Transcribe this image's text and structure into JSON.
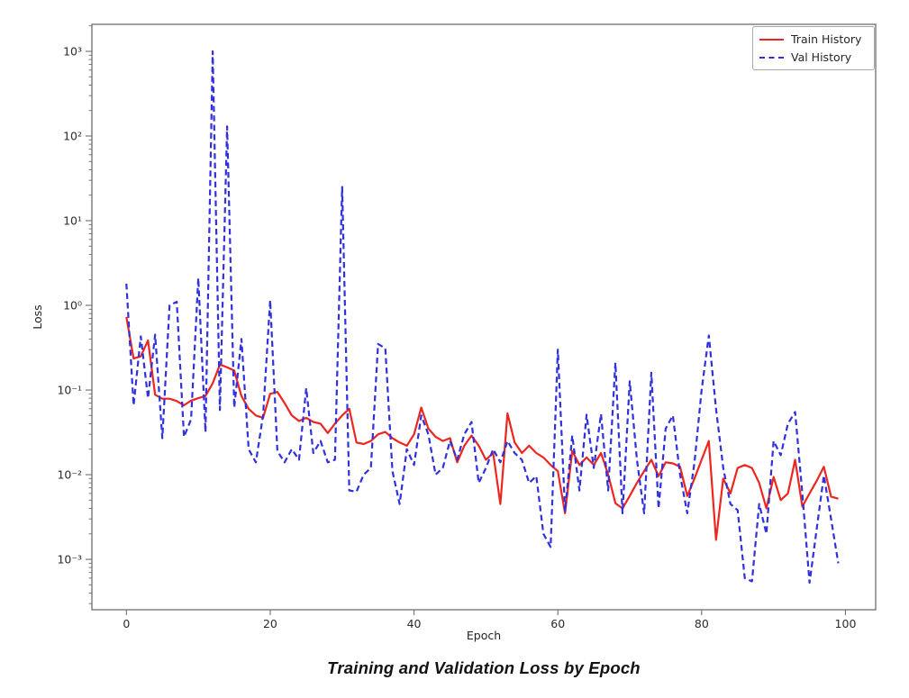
{
  "figure": {
    "caption": "Training and Validation Loss by Epoch"
  },
  "colors": {
    "train": "#ed261f",
    "val": "#3030dd",
    "frame": "#6e6e6e",
    "tick_label": "#2b2b2b"
  },
  "chart_data": {
    "type": "line",
    "title": "",
    "xlabel": "Epoch",
    "ylabel": "Loss",
    "x_scale": "linear",
    "y_scale": "log",
    "grid": false,
    "xlim": [
      -4.8,
      104.2
    ],
    "ylim": [
      0.000254,
      2085
    ],
    "x_ticks": [
      0,
      20,
      40,
      60,
      80,
      100
    ],
    "y_ticks": [
      {
        "value": 1000,
        "label": "10³"
      },
      {
        "value": 100,
        "label": "10²"
      },
      {
        "value": 10,
        "label": "10¹"
      },
      {
        "value": 1,
        "label": "10⁰"
      },
      {
        "value": 0.1,
        "label": "10⁻¹"
      },
      {
        "value": 0.01,
        "label": "10⁻²"
      },
      {
        "value": 0.001,
        "label": "10⁻³"
      }
    ],
    "x_note": "x value = epoch index, epochs 0-99",
    "legend": {
      "position": "upper right"
    },
    "series": [
      {
        "name": "Train History",
        "color": "#ed261f",
        "dash": "solid",
        "values": [
          0.73,
          0.235,
          0.25,
          0.385,
          0.088,
          0.079,
          0.079,
          0.074,
          0.066,
          0.075,
          0.08,
          0.085,
          0.12,
          0.2,
          0.185,
          0.17,
          0.085,
          0.06,
          0.05,
          0.047,
          0.09,
          0.095,
          0.07,
          0.05,
          0.043,
          0.047,
          0.042,
          0.04,
          0.031,
          0.04,
          0.05,
          0.06,
          0.024,
          0.023,
          0.025,
          0.03,
          0.032,
          0.027,
          0.024,
          0.022,
          0.03,
          0.062,
          0.035,
          0.028,
          0.025,
          0.027,
          0.014,
          0.022,
          0.029,
          0.022,
          0.015,
          0.018,
          0.0045,
          0.053,
          0.024,
          0.018,
          0.022,
          0.018,
          0.016,
          0.013,
          0.011,
          0.0035,
          0.019,
          0.013,
          0.016,
          0.013,
          0.018,
          0.01,
          0.0046,
          0.004,
          0.0056,
          0.008,
          0.011,
          0.015,
          0.0096,
          0.014,
          0.0136,
          0.0124,
          0.0056,
          0.009,
          0.015,
          0.025,
          0.0017,
          0.009,
          0.006,
          0.012,
          0.013,
          0.012,
          0.008,
          0.004,
          0.0094,
          0.005,
          0.006,
          0.015,
          0.0042,
          0.006,
          0.0085,
          0.0124,
          0.0055,
          0.0052
        ]
      },
      {
        "name": "Val History",
        "color": "#3030dd",
        "dash": "dashed",
        "values": [
          1.8,
          0.066,
          0.43,
          0.08,
          0.45,
          0.027,
          1.0,
          1.1,
          0.028,
          0.045,
          2.1,
          0.032,
          1000,
          0.058,
          130,
          0.062,
          0.4,
          0.02,
          0.014,
          0.05,
          1.15,
          0.019,
          0.014,
          0.02,
          0.015,
          0.105,
          0.018,
          0.025,
          0.014,
          0.015,
          25,
          0.0065,
          0.0063,
          0.01,
          0.012,
          0.35,
          0.31,
          0.011,
          0.0045,
          0.02,
          0.013,
          0.05,
          0.03,
          0.01,
          0.012,
          0.025,
          0.015,
          0.03,
          0.042,
          0.008,
          0.012,
          0.02,
          0.014,
          0.025,
          0.018,
          0.015,
          0.008,
          0.0096,
          0.002,
          0.0014,
          0.3,
          0.0037,
          0.029,
          0.0065,
          0.051,
          0.012,
          0.052,
          0.0065,
          0.21,
          0.0035,
          0.127,
          0.015,
          0.0035,
          0.16,
          0.004,
          0.035,
          0.05,
          0.01,
          0.0035,
          0.014,
          0.1,
          0.44,
          0.06,
          0.012,
          0.0045,
          0.0038,
          0.0006,
          0.00055,
          0.0045,
          0.002,
          0.025,
          0.017,
          0.04,
          0.055,
          0.006,
          0.00053,
          0.0023,
          0.0098,
          0.003,
          0.0009
        ]
      }
    ]
  }
}
